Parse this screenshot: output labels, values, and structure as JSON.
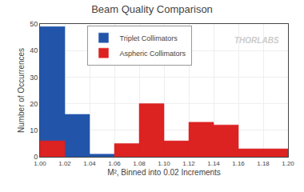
{
  "chart_data": {
    "type": "histogram",
    "title": "Beam Quality Comparison",
    "x_label": "M², Binned into 0.02 Increments",
    "y_label": "Number of Occurrences",
    "bins": [
      1.0,
      1.02,
      1.04,
      1.06,
      1.08,
      1.1,
      1.12,
      1.14,
      1.16,
      1.18,
      1.2
    ],
    "series": [
      {
        "name": "Triplet Collimators",
        "color": "#2255aa",
        "values": [
          49,
          16,
          1,
          1,
          2,
          null,
          null,
          null,
          null,
          null
        ]
      },
      {
        "name": "Aspheric Collimators",
        "color": "#dd2222",
        "values": [
          6,
          null,
          null,
          5,
          20,
          6,
          13,
          12,
          3,
          3
        ]
      }
    ],
    "xlim": [
      1.0,
      1.2
    ],
    "xticks": [
      {
        "value": 1.0,
        "label": "1.00"
      },
      1.02,
      1.04,
      1.06,
      1.08,
      {
        "value": 1.1,
        "label": "1.10"
      },
      1.12,
      1.14,
      1.16,
      1.18,
      {
        "value": 1.2,
        "label": "1.20"
      }
    ],
    "ylim": [
      0,
      50
    ],
    "yticks": [
      0,
      10,
      20,
      30,
      40,
      50
    ],
    "grid": true,
    "legend": "upper center",
    "annotations": [
      "THORLABS"
    ]
  }
}
